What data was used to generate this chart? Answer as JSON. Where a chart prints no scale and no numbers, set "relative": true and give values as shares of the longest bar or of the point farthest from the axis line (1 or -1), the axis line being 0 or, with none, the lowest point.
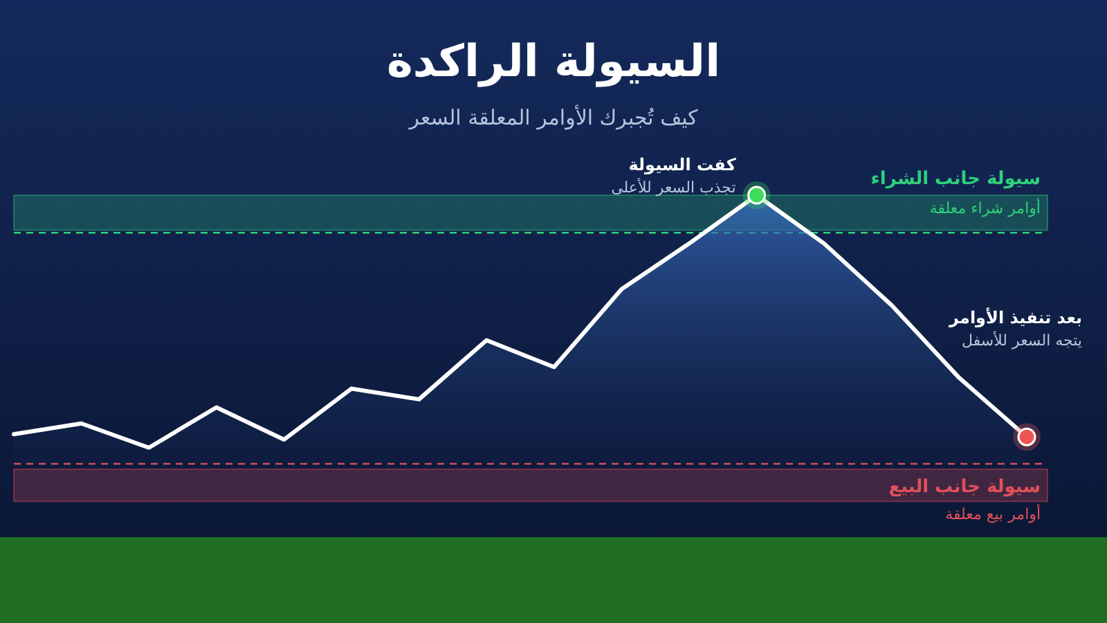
{
  "chart_data": {
    "type": "area",
    "relative": true,
    "title": "السيولة الراكدة",
    "subtitle": "كيف تُجبرك الأوامر المعلقة السعر",
    "categories": [
      null,
      null,
      null,
      null,
      null,
      null,
      null,
      null,
      null,
      null,
      null,
      null,
      null,
      null,
      null,
      null
    ],
    "series": [
      {
        "color": "#ffffff",
        "values": [
          0.11,
          0.15,
          0.06,
          0.21,
          0.09,
          0.28,
          0.24,
          0.46,
          0.36,
          0.65,
          0.82,
          1,
          0.82,
          0.59,
          0.32,
          0.1
        ]
      }
    ],
    "bands": [
      {
        "axis": "y",
        "from": 0.87,
        "to": 1.0,
        "label": "سيولة جانب الشراء",
        "color": "#2fd07a"
      },
      {
        "axis": "y",
        "from": -0.14,
        "to": -0.02,
        "label": "سيولة جانب البيع",
        "color": "#e0505a"
      }
    ],
    "ref_lines": [
      {
        "axis": "y",
        "value": 0.86,
        "label": "أوامر شراء معلقة",
        "color": "#2fd07a",
        "line_style": "dashed"
      },
      {
        "axis": "y",
        "value": 0,
        "label": "أوامر بيع معلقة",
        "color": "#e0505a",
        "line_style": "dashed"
      }
    ],
    "annotations": [
      "كفت السيولة",
      "تجذب السعر للأعلى",
      "بعد تنفيذ الأوامر",
      "يتجه السعر للأسفل"
    ]
  }
}
